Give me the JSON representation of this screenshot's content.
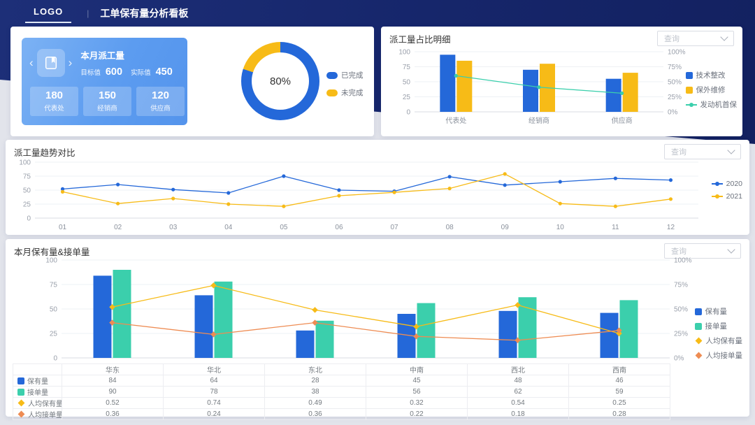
{
  "header": {
    "logo": "LOGO",
    "divider": "|",
    "title": "工单保有量分析看板"
  },
  "summary_card": {
    "title": "本月派工量",
    "target_label": "目标值",
    "target_value": "600",
    "actual_label": "实际值",
    "actual_value": "450",
    "prev_arrow": "‹",
    "next_arrow": "›",
    "boxes": [
      {
        "value": "180",
        "label": "代表处"
      },
      {
        "value": "150",
        "label": "经销商"
      },
      {
        "value": "120",
        "label": "供应商"
      }
    ]
  },
  "panels": {
    "ratio": {
      "title": "派工量占比明细",
      "select_placeholder": "查询"
    },
    "trend": {
      "title": "派工量趋势对比",
      "select_placeholder": "查询"
    },
    "volume": {
      "title": "本月保有量&接单量",
      "select_placeholder": "查询"
    }
  },
  "colors": {
    "navy": "#16266b",
    "blue": "#2468d9",
    "yellow": "#f7bb17",
    "teal": "#3bcfac",
    "orange": "#ee8c53"
  },
  "chart_data": {
    "donut": {
      "type": "pie",
      "center_label": "80%",
      "segments": [
        {
          "label": "已完成",
          "value": 80,
          "color": "#2468d9"
        },
        {
          "label": "未完成",
          "value": 20,
          "color": "#f7bb17"
        }
      ]
    },
    "ratio": {
      "type": "bar",
      "title": "派工量占比明细",
      "categories": [
        "代表处",
        "经销商",
        "供应商"
      ],
      "ylim": [
        0,
        100
      ],
      "yticks": [
        0,
        25,
        50,
        75,
        100
      ],
      "right_yticks": [
        "0%",
        "25%",
        "50%",
        "75%",
        "100%"
      ],
      "series": [
        {
          "name": "技术整改",
          "type": "bar",
          "color": "#2468d9",
          "values": [
            95,
            70,
            55
          ]
        },
        {
          "name": "保外维修",
          "type": "bar",
          "color": "#f7bb17",
          "values": [
            85,
            80,
            65
          ]
        },
        {
          "name": "发动机首保",
          "type": "line",
          "marker": "circle",
          "color": "#3bcfac",
          "yaxis": "right",
          "values": [
            60,
            41,
            31
          ]
        }
      ]
    },
    "trend": {
      "type": "line",
      "title": "派工量趋势对比",
      "categories": [
        "01",
        "02",
        "03",
        "04",
        "05",
        "06",
        "07",
        "08",
        "09",
        "10",
        "11",
        "12"
      ],
      "ylim": [
        0,
        100
      ],
      "yticks": [
        0,
        25,
        50,
        75,
        100
      ],
      "series": [
        {
          "name": "2020",
          "type": "line",
          "marker": "circle",
          "color": "#2468d9",
          "values": [
            52,
            60,
            51,
            45,
            75,
            50,
            48,
            74,
            59,
            65,
            71,
            68
          ]
        },
        {
          "name": "2021",
          "type": "line",
          "marker": "circle",
          "color": "#f7bb17",
          "values": [
            47,
            26,
            35,
            25,
            21,
            40,
            46,
            53,
            79,
            26,
            21,
            34
          ]
        }
      ]
    },
    "volume": {
      "type": "bar",
      "title": "本月保有量&接单量",
      "categories": [
        "华东",
        "华北",
        "东北",
        "中南",
        "西北",
        "西南"
      ],
      "ylim": [
        0,
        100
      ],
      "yticks": [
        0,
        25,
        50,
        75,
        100
      ],
      "right_yticks": [
        "0%",
        "25%",
        "50%",
        "75%",
        "100%"
      ],
      "series": [
        {
          "name": "保有量",
          "type": "bar",
          "color": "#2468d9",
          "values": [
            84,
            64,
            28,
            45,
            48,
            46
          ]
        },
        {
          "name": "接单量",
          "type": "bar",
          "color": "#3bcfac",
          "values": [
            90,
            78,
            38,
            56,
            62,
            59
          ]
        },
        {
          "name": "人均保有量",
          "type": "line",
          "marker": "diamond",
          "color": "#f7bb17",
          "yaxis": "right",
          "value_scale": 100,
          "values": [
            0.52,
            0.74,
            0.49,
            0.32,
            0.54,
            0.25
          ]
        },
        {
          "name": "人均接单量",
          "type": "line",
          "marker": "diamond",
          "color": "#ee8c53",
          "yaxis": "right",
          "value_scale": 100,
          "values": [
            0.36,
            0.24,
            0.36,
            0.22,
            0.18,
            0.28
          ]
        }
      ]
    }
  }
}
